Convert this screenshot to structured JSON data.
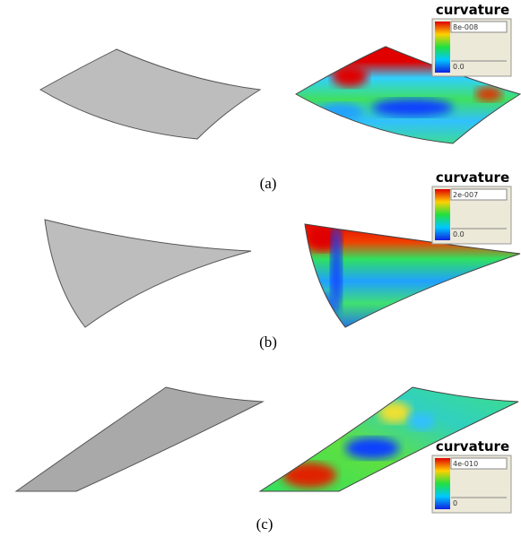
{
  "panels": [
    {
      "label": "(a)",
      "legend": {
        "title": "curvature",
        "max": "8e-008",
        "min": "0.0"
      }
    },
    {
      "label": "(b)",
      "legend": {
        "title": "curvature",
        "max": "2e-007",
        "min": "0.0"
      }
    },
    {
      "label": "(c)",
      "legend": {
        "title": "curvature",
        "max": "4e-010",
        "min": "0"
      }
    }
  ]
}
